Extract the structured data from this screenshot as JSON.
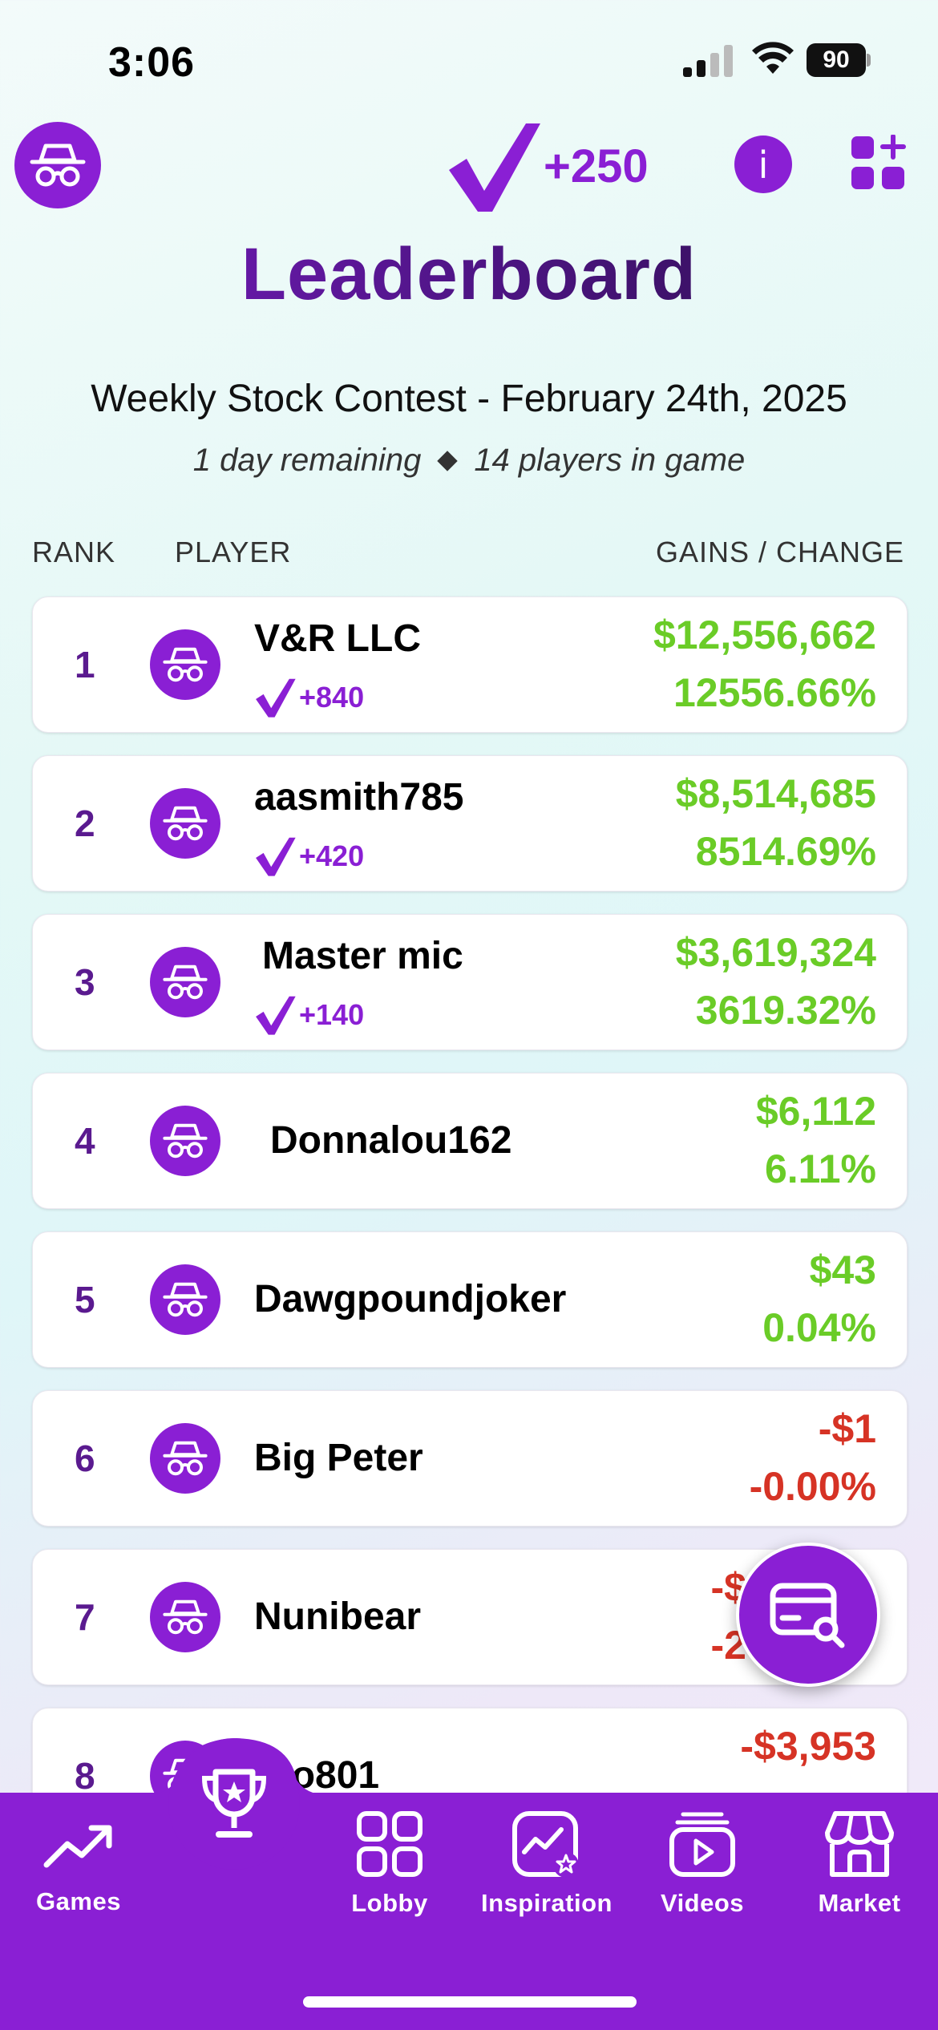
{
  "status_bar": {
    "time": "3:06",
    "battery": "90"
  },
  "header": {
    "points": "+250"
  },
  "title": "Leaderboard",
  "contest": {
    "name": "Weekly Stock Contest - February 24th, 2025",
    "remaining": "1 day remaining",
    "players": "14 players in game"
  },
  "columns": {
    "rank": "RANK",
    "player": "PLAYER",
    "gains": "GAINS / CHANGE"
  },
  "rows": [
    {
      "rank": "1",
      "name": "V&R LLC",
      "bonus": "+840",
      "gain": "$12,556,662",
      "pct": "12556.66%",
      "trend": "positive"
    },
    {
      "rank": "2",
      "name": "aasmith785",
      "bonus": "+420",
      "gain": "$8,514,685",
      "pct": "8514.69%",
      "trend": "positive"
    },
    {
      "rank": "3",
      "name": "Master mic",
      "bonus": "+140",
      "gain": "$3,619,324",
      "pct": "3619.32%",
      "trend": "positive"
    },
    {
      "rank": "4",
      "name": "Donnalou162",
      "bonus": "",
      "gain": "$6,112",
      "pct": "6.11%",
      "trend": "positive"
    },
    {
      "rank": "5",
      "name": "Dawgpoundjoker",
      "bonus": "",
      "gain": "$43",
      "pct": "0.04%",
      "trend": "positive"
    },
    {
      "rank": "6",
      "name": "Big Peter",
      "bonus": "",
      "gain": "-$1",
      "pct": "-0.00%",
      "trend": "negative"
    },
    {
      "rank": "7",
      "name": "Nunibear",
      "bonus": "",
      "gain": "-$",
      "pct": "-2",
      "trend": "negative"
    },
    {
      "rank": "8",
      "name": "ko801",
      "bonus": "",
      "gain": "-$3,953",
      "pct": "",
      "trend": "negative"
    }
  ],
  "tabs": [
    {
      "label": "Games",
      "icon": "trend-up-icon"
    },
    {
      "label": "",
      "icon": "trophy-icon"
    },
    {
      "label": "Lobby",
      "icon": "grid-icon"
    },
    {
      "label": "Inspiration",
      "icon": "inspiration-icon"
    },
    {
      "label": "Videos",
      "icon": "video-icon"
    },
    {
      "label": "Market",
      "icon": "market-icon"
    }
  ],
  "colors": {
    "brand": "#8a1fd4",
    "positive": "#6acc27",
    "negative": "#d63325",
    "rank": "#5a1a8f"
  }
}
